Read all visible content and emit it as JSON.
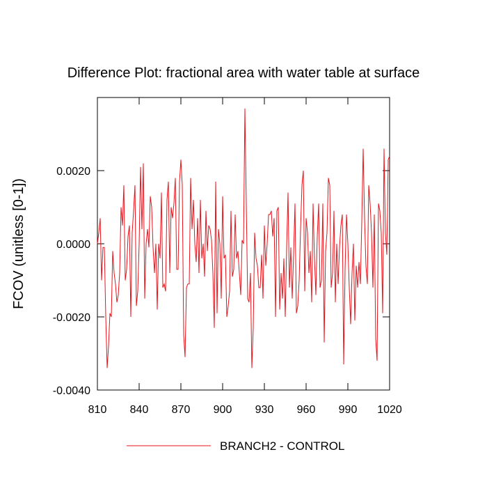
{
  "chart_data": {
    "type": "line",
    "title": "Difference Plot: fractional area with water table at surface",
    "y_label": "FCOV  (unitless [0-1])",
    "xlim": [
      810,
      1020
    ],
    "xticks": [
      810,
      840,
      870,
      900,
      930,
      960,
      990,
      1020
    ],
    "ylim": [
      -0.004,
      0.004
    ],
    "yticks": [
      {
        "value": -0.004,
        "label": "-0.0040"
      },
      {
        "value": -0.002,
        "label": "-0.0020"
      },
      {
        "value": 0,
        "label": "0.0000"
      },
      {
        "value": 0.002,
        "label": "0.0020"
      }
    ],
    "x": [
      810,
      811,
      812,
      813,
      814,
      815,
      816,
      817,
      818,
      819,
      820,
      821,
      822,
      823,
      824,
      825,
      826,
      827,
      828,
      829,
      830,
      831,
      832,
      833,
      834,
      835,
      836,
      837,
      838,
      839,
      840,
      841,
      842,
      843,
      844,
      845,
      846,
      847,
      848,
      849,
      850,
      851,
      852,
      853,
      854,
      855,
      856,
      857,
      858,
      859,
      860,
      861,
      862,
      863,
      864,
      865,
      866,
      867,
      868,
      869,
      870,
      871,
      872,
      873,
      874,
      875,
      876,
      877,
      878,
      879,
      880,
      881,
      882,
      883,
      884,
      885,
      886,
      887,
      888,
      889,
      890,
      891,
      892,
      893,
      894,
      895,
      896,
      897,
      898,
      899,
      900,
      901,
      902,
      903,
      904,
      905,
      906,
      907,
      908,
      909,
      910,
      911,
      912,
      913,
      914,
      915,
      916,
      917,
      918,
      919,
      920,
      921,
      922,
      923,
      924,
      925,
      926,
      927,
      928,
      929,
      930,
      931,
      932,
      933,
      934,
      935,
      936,
      937,
      938,
      939,
      940,
      941,
      942,
      943,
      944,
      945,
      946,
      947,
      948,
      949,
      950,
      951,
      952,
      953,
      954,
      955,
      956,
      957,
      958,
      959,
      960,
      961,
      962,
      963,
      964,
      965,
      966,
      967,
      968,
      969,
      970,
      971,
      972,
      973,
      974,
      975,
      976,
      977,
      978,
      979,
      980,
      981,
      982,
      983,
      984,
      985,
      986,
      987,
      988,
      989,
      990,
      991,
      992,
      993,
      994,
      995,
      996,
      997,
      998,
      999,
      1000,
      1001,
      1002,
      1003,
      1004,
      1005,
      1006,
      1007,
      1008,
      1009,
      1010,
      1011,
      1012,
      1013,
      1014,
      1015,
      1016,
      1017,
      1018,
      1019,
      1020
    ],
    "series": [
      {
        "name": "BRANCH2 - CONTROL",
        "color": "#e8121a",
        "values": [
          0.0,
          0.0003,
          0.0007,
          -0.001,
          -0.0001,
          -0.0001,
          -0.002,
          -0.0034,
          -0.0028,
          -0.0019,
          -0.002,
          -0.0002,
          -0.0008,
          -0.0011,
          -0.0016,
          -0.0014,
          -0.0008,
          0.001,
          0.0005,
          0.0016,
          -0.001,
          -0.0007,
          0.0002,
          0.0005,
          -0.002,
          0.0003,
          0.0009,
          0.0016,
          -0.0017,
          -0.0013,
          0.0,
          0.0021,
          0.0004,
          0.0022,
          -0.0015,
          0.0,
          0.0004,
          -0.0001,
          0.0013,
          0.001,
          -0.0001,
          -0.0008,
          0.0,
          -0.0018,
          0.0,
          -0.0004,
          0.0014,
          -0.0012,
          -0.0011,
          -0.0013,
          0.0012,
          0.0017,
          -0.0008,
          0.001,
          0.0007,
          0.0011,
          0.0018,
          -0.0007,
          -0.0007,
          0.0017,
          0.0023,
          0.0016,
          -0.0025,
          -0.0031,
          -0.0012,
          -0.0011,
          -0.0011,
          0.0018,
          0.0004,
          0.0012,
          0.0,
          -0.0005,
          0.0007,
          -0.0008,
          0.0012,
          -0.0004,
          0.0,
          -0.0009,
          0.0009,
          -0.0002,
          0.0005,
          0.0004,
          0.0001,
          -0.0008,
          -0.0023,
          0.0017,
          -0.0019,
          0.0004,
          0.0,
          -0.0015,
          0.0013,
          -0.0004,
          -0.0003,
          -0.002,
          -0.0017,
          -0.0013,
          0.0009,
          -0.0009,
          -0.0007,
          0.0008,
          -0.0004,
          -0.0002,
          -0.0008,
          -0.0014,
          0.0001,
          0.0,
          0.0037,
          0.0011,
          -0.0015,
          -0.0016,
          -0.0008,
          -0.0034,
          -0.0023,
          0.0003,
          -0.0004,
          -0.0006,
          -0.0012,
          -0.0012,
          -0.0003,
          -0.0015,
          0.0005,
          -0.0006,
          0.0,
          0.0008,
          0.0008,
          0.0009,
          0.0002,
          0.0007,
          -0.002,
          0.0009,
          0.001,
          -0.0018,
          -0.0008,
          -0.0015,
          -0.0004,
          -0.002,
          -0.0001,
          0.0014,
          -0.0012,
          -0.0001,
          -0.0015,
          -0.0003,
          0.0011,
          -0.0019,
          -0.0017,
          -0.001,
          0.0004,
          0.0016,
          0.002,
          -0.0013,
          0.0007,
          0.0003,
          -0.0008,
          -0.0002,
          -0.0016,
          0.0011,
          -0.0004,
          -0.0014,
          0.0002,
          0.0011,
          -0.0012,
          -0.001,
          0.0011,
          -0.0027,
          -0.0002,
          0.0003,
          0.0018,
          0.0016,
          -0.0012,
          -0.0008,
          0.0009,
          -0.0016,
          0.0,
          -0.0011,
          -0.0001,
          0.0005,
          0.0008,
          -0.0033,
          -0.0007,
          0.0008,
          0.0,
          -0.0012,
          -0.0022,
          -0.0008,
          0.0,
          -0.0021,
          -0.0006,
          -0.0012,
          -0.0005,
          -0.0011,
          0.0006,
          0.0026,
          0.0007,
          -0.0006,
          -0.0011,
          0.0016,
          0.0011,
          0.0003,
          -0.0012,
          0.0008,
          -0.0026,
          -0.0032,
          0.0011,
          0.0009,
          0.0003,
          -0.0019,
          0.0026,
          0.0003,
          -0.0003,
          0.0023,
          0.0024
        ]
      }
    ]
  }
}
